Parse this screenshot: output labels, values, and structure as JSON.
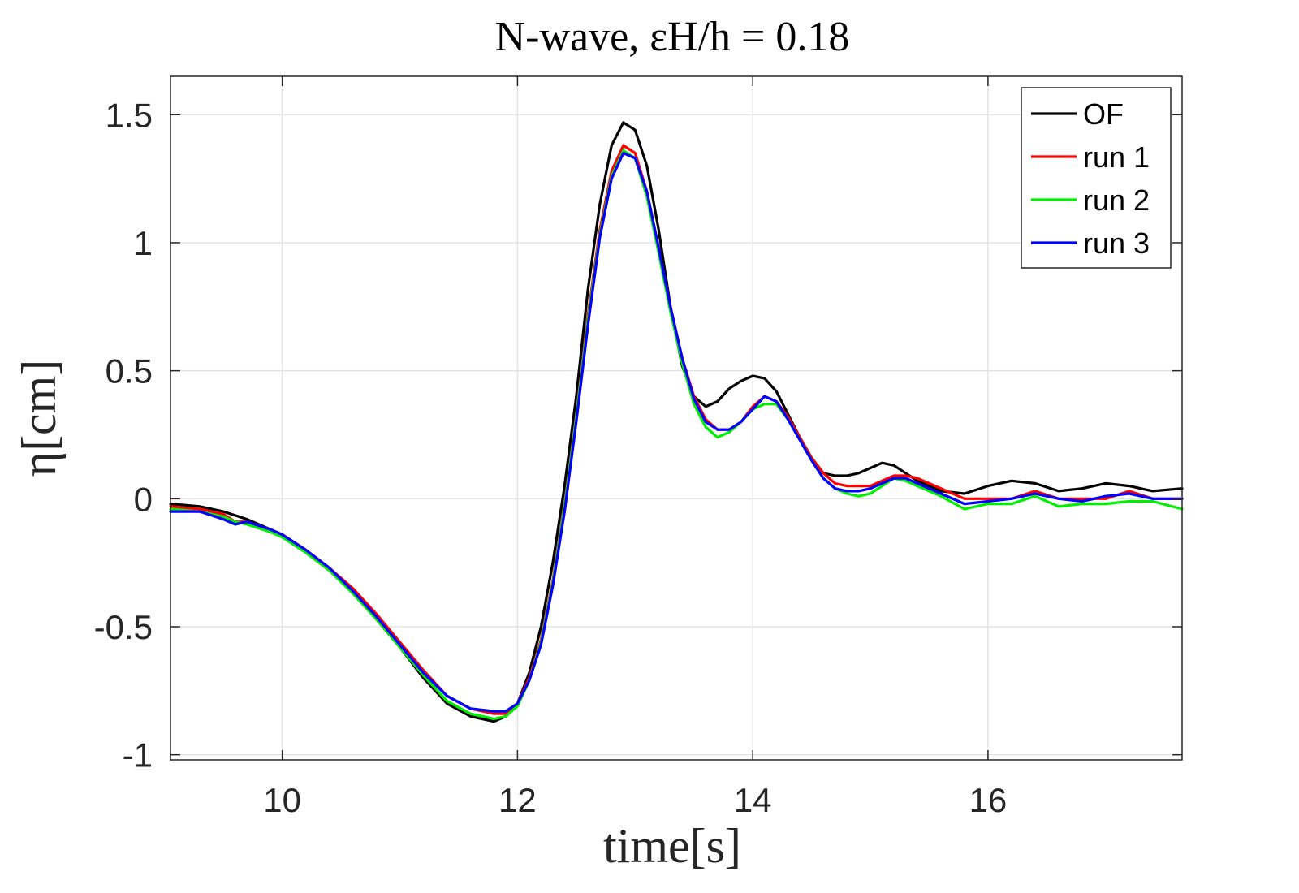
{
  "chart_data": {
    "type": "line",
    "title": "N-wave, εH/h = 0.18",
    "xlabel": "time[s]",
    "ylabel": "η[cm]",
    "xlim": [
      9.05,
      17.65
    ],
    "ylim": [
      -1.02,
      1.65
    ],
    "xticks": [
      10,
      12,
      14,
      16
    ],
    "xtick_labels": [
      "10",
      "12",
      "14",
      "16"
    ],
    "yticks": [
      -1,
      -0.5,
      0,
      0.5,
      1,
      1.5
    ],
    "ytick_labels": [
      "-1",
      "-0.5",
      "0",
      "0.5",
      "1",
      "1.5"
    ],
    "grid": true,
    "legend_position": "top-right",
    "series": [
      {
        "name": "OF",
        "color": "#000000",
        "x": [
          9.05,
          9.3,
          9.5,
          9.7,
          9.9,
          10.0,
          10.2,
          10.4,
          10.6,
          10.8,
          11.0,
          11.2,
          11.4,
          11.6,
          11.8,
          11.9,
          12.0,
          12.1,
          12.2,
          12.3,
          12.4,
          12.5,
          12.6,
          12.7,
          12.8,
          12.9,
          13.0,
          13.1,
          13.2,
          13.3,
          13.4,
          13.5,
          13.6,
          13.7,
          13.8,
          13.9,
          14.0,
          14.1,
          14.2,
          14.3,
          14.4,
          14.5,
          14.6,
          14.7,
          14.8,
          14.9,
          15.0,
          15.1,
          15.2,
          15.3,
          15.4,
          15.6,
          15.8,
          16.0,
          16.2,
          16.4,
          16.6,
          16.8,
          17.0,
          17.2,
          17.4,
          17.65
        ],
        "y": [
          -0.02,
          -0.03,
          -0.05,
          -0.08,
          -0.12,
          -0.14,
          -0.2,
          -0.27,
          -0.36,
          -0.47,
          -0.58,
          -0.7,
          -0.8,
          -0.85,
          -0.87,
          -0.85,
          -0.8,
          -0.68,
          -0.5,
          -0.25,
          0.05,
          0.4,
          0.82,
          1.15,
          1.38,
          1.47,
          1.44,
          1.3,
          1.05,
          0.75,
          0.52,
          0.4,
          0.36,
          0.38,
          0.43,
          0.46,
          0.48,
          0.47,
          0.42,
          0.33,
          0.24,
          0.16,
          0.1,
          0.09,
          0.09,
          0.1,
          0.12,
          0.14,
          0.13,
          0.1,
          0.07,
          0.03,
          0.02,
          0.05,
          0.07,
          0.06,
          0.03,
          0.04,
          0.06,
          0.05,
          0.03,
          0.04
        ]
      },
      {
        "name": "run 1",
        "color": "#ff0000",
        "x": [
          9.05,
          9.3,
          9.5,
          9.6,
          9.7,
          9.9,
          10.0,
          10.2,
          10.4,
          10.6,
          10.8,
          11.0,
          11.2,
          11.4,
          11.6,
          11.8,
          11.9,
          12.0,
          12.1,
          12.2,
          12.3,
          12.4,
          12.5,
          12.6,
          12.7,
          12.8,
          12.9,
          13.0,
          13.1,
          13.2,
          13.3,
          13.4,
          13.5,
          13.6,
          13.7,
          13.8,
          13.9,
          14.0,
          14.1,
          14.2,
          14.3,
          14.4,
          14.5,
          14.6,
          14.7,
          14.8,
          14.9,
          15.0,
          15.1,
          15.2,
          15.3,
          15.4,
          15.6,
          15.8,
          16.0,
          16.2,
          16.4,
          16.6,
          16.8,
          17.0,
          17.2,
          17.4,
          17.65
        ],
        "y": [
          -0.03,
          -0.04,
          -0.06,
          -0.09,
          -0.09,
          -0.12,
          -0.14,
          -0.2,
          -0.27,
          -0.35,
          -0.45,
          -0.56,
          -0.67,
          -0.77,
          -0.82,
          -0.84,
          -0.84,
          -0.8,
          -0.7,
          -0.55,
          -0.32,
          -0.02,
          0.33,
          0.72,
          1.05,
          1.28,
          1.38,
          1.35,
          1.2,
          0.98,
          0.75,
          0.55,
          0.4,
          0.31,
          0.27,
          0.27,
          0.3,
          0.36,
          0.4,
          0.38,
          0.32,
          0.24,
          0.16,
          0.1,
          0.06,
          0.05,
          0.05,
          0.05,
          0.07,
          0.09,
          0.09,
          0.08,
          0.04,
          0.0,
          0.0,
          0.0,
          0.03,
          0.0,
          0.0,
          0.0,
          0.03,
          0.0,
          0.0
        ]
      },
      {
        "name": "run 2",
        "color": "#00ee00",
        "x": [
          9.05,
          9.3,
          9.5,
          9.6,
          9.7,
          9.9,
          10.0,
          10.2,
          10.4,
          10.6,
          10.8,
          11.0,
          11.2,
          11.4,
          11.6,
          11.8,
          11.9,
          12.0,
          12.1,
          12.2,
          12.3,
          12.4,
          12.5,
          12.6,
          12.7,
          12.8,
          12.9,
          13.0,
          13.1,
          13.2,
          13.3,
          13.4,
          13.5,
          13.6,
          13.7,
          13.8,
          13.9,
          14.0,
          14.1,
          14.2,
          14.3,
          14.4,
          14.5,
          14.6,
          14.7,
          14.8,
          14.9,
          15.0,
          15.1,
          15.2,
          15.3,
          15.4,
          15.6,
          15.8,
          16.0,
          16.2,
          16.4,
          16.6,
          16.8,
          17.0,
          17.2,
          17.4,
          17.65
        ],
        "y": [
          -0.04,
          -0.05,
          -0.07,
          -0.09,
          -0.1,
          -0.13,
          -0.15,
          -0.21,
          -0.28,
          -0.37,
          -0.47,
          -0.58,
          -0.69,
          -0.79,
          -0.84,
          -0.86,
          -0.85,
          -0.81,
          -0.71,
          -0.56,
          -0.33,
          -0.03,
          0.32,
          0.7,
          1.03,
          1.26,
          1.36,
          1.33,
          1.18,
          0.96,
          0.73,
          0.53,
          0.37,
          0.28,
          0.24,
          0.26,
          0.3,
          0.35,
          0.37,
          0.37,
          0.31,
          0.23,
          0.15,
          0.08,
          0.04,
          0.02,
          0.01,
          0.02,
          0.05,
          0.08,
          0.07,
          0.05,
          0.01,
          -0.04,
          -0.02,
          -0.02,
          0.01,
          -0.03,
          -0.02,
          -0.02,
          -0.01,
          -0.01,
          -0.04
        ]
      },
      {
        "name": "run 3",
        "color": "#0000ff",
        "x": [
          9.05,
          9.3,
          9.5,
          9.6,
          9.7,
          9.9,
          10.0,
          10.2,
          10.4,
          10.6,
          10.8,
          11.0,
          11.2,
          11.4,
          11.6,
          11.8,
          11.9,
          12.0,
          12.1,
          12.2,
          12.3,
          12.4,
          12.5,
          12.6,
          12.7,
          12.8,
          12.9,
          13.0,
          13.1,
          13.2,
          13.3,
          13.4,
          13.5,
          13.6,
          13.7,
          13.8,
          13.9,
          14.0,
          14.1,
          14.2,
          14.3,
          14.4,
          14.5,
          14.6,
          14.7,
          14.8,
          14.9,
          15.0,
          15.1,
          15.2,
          15.3,
          15.4,
          15.6,
          15.8,
          16.0,
          16.2,
          16.4,
          16.6,
          16.8,
          17.0,
          17.2,
          17.4,
          17.65
        ],
        "y": [
          -0.05,
          -0.05,
          -0.08,
          -0.1,
          -0.09,
          -0.12,
          -0.14,
          -0.2,
          -0.27,
          -0.36,
          -0.46,
          -0.57,
          -0.68,
          -0.77,
          -0.82,
          -0.83,
          -0.83,
          -0.8,
          -0.71,
          -0.57,
          -0.34,
          -0.05,
          0.3,
          0.68,
          1.02,
          1.25,
          1.35,
          1.33,
          1.2,
          0.98,
          0.75,
          0.55,
          0.39,
          0.3,
          0.27,
          0.27,
          0.3,
          0.35,
          0.4,
          0.38,
          0.31,
          0.23,
          0.15,
          0.08,
          0.04,
          0.03,
          0.03,
          0.04,
          0.06,
          0.08,
          0.08,
          0.06,
          0.02,
          -0.02,
          -0.01,
          0.0,
          0.02,
          0.0,
          -0.01,
          0.01,
          0.02,
          0.0,
          0.0
        ]
      }
    ]
  }
}
